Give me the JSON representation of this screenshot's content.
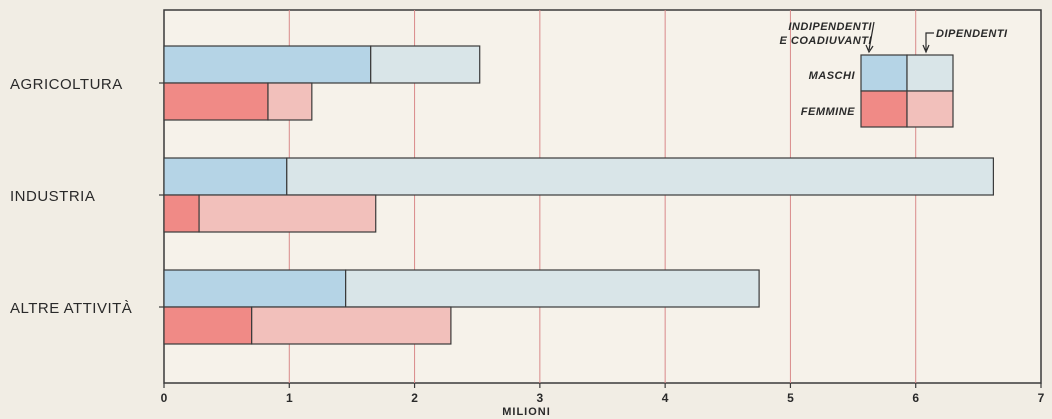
{
  "chart_data": {
    "type": "bar",
    "orientation": "horizontal",
    "stacked": true,
    "categories": [
      "AGRICOLTURA",
      "INDUSTRIA",
      "ALTRE ATTIVITÀ"
    ],
    "groups": [
      {
        "name": "MASCHI",
        "series": [
          {
            "name": "INDIPENDENTI E COADIUVANTI",
            "values": [
              1.65,
              0.98,
              1.45
            ],
            "color": "#b5d4e6"
          },
          {
            "name": "DIPENDENTI",
            "values": [
              0.87,
              5.64,
              3.3
            ],
            "color": "#d9e5e8"
          }
        ]
      },
      {
        "name": "FEMMINE",
        "series": [
          {
            "name": "INDIPENDENTI E COADIUVANTI",
            "values": [
              0.83,
              0.28,
              0.7
            ],
            "color": "#f08a86"
          },
          {
            "name": "DIPENDENTI",
            "values": [
              0.35,
              1.41,
              1.59
            ],
            "color": "#f2c0bb"
          }
        ]
      }
    ],
    "xlim": [
      0,
      7
    ],
    "xticks": [
      "0",
      "1",
      "2",
      "3",
      "4",
      "5",
      "6",
      "7"
    ],
    "xlabel": "MILIONI",
    "grid": true,
    "grid_color": "#d98a8a",
    "legend": {
      "position": "top-right",
      "col_labels": [
        "INDIPENDENTI",
        "E COADIUVANTI",
        "DIPENDENTI"
      ],
      "row_labels": [
        "MASCHI",
        "FEMMINE"
      ]
    }
  }
}
